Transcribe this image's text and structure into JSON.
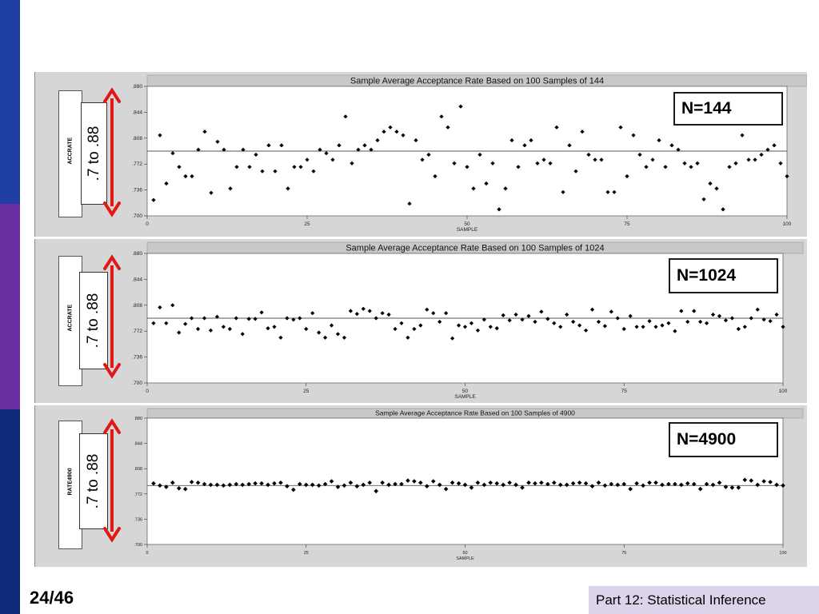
{
  "slide": {
    "page_number": "24/46",
    "footer": "Part 12: Statistical Inference",
    "colors": {
      "bar_top": "#1f3fa6",
      "bar_mid": "#6a2ea0",
      "bar_bottom": "#0d2a7a",
      "footer_tab": "#dcd4ea",
      "arrow": "#e01818"
    }
  },
  "annotations": [
    {
      "n_label": "N=144",
      "range_label": ".7 to .88",
      "legend_label": "ACCRATE"
    },
    {
      "n_label": "N=1024",
      "range_label": ".7 to .88",
      "legend_label": "ACCRATE"
    },
    {
      "n_label": "N=4900",
      "range_label": ".7 to .88",
      "legend_label": "RATE4900"
    }
  ],
  "chart_data": [
    {
      "type": "scatter",
      "title": "Sample Average Acceptance Rate Based on 100 Samples of 144",
      "xlabel": "SAMPLE",
      "xlim": [
        0,
        100
      ],
      "ylim": [
        0.7,
        0.88
      ],
      "xticks": [
        "0",
        "25",
        "50",
        "75",
        "100"
      ],
      "yticks": [
        ".880",
        ".844",
        ".808",
        ".772",
        ".736",
        ".700"
      ],
      "mean_line": 0.79,
      "x": [
        1,
        2,
        3,
        4,
        5,
        6,
        7,
        8,
        9,
        10,
        11,
        12,
        13,
        14,
        15,
        16,
        17,
        18,
        19,
        20,
        21,
        22,
        23,
        24,
        25,
        26,
        27,
        28,
        29,
        30,
        31,
        32,
        33,
        34,
        35,
        36,
        37,
        38,
        39,
        40,
        41,
        42,
        43,
        44,
        45,
        46,
        47,
        48,
        49,
        50,
        51,
        52,
        53,
        54,
        55,
        56,
        57,
        58,
        59,
        60,
        61,
        62,
        63,
        64,
        65,
        66,
        67,
        68,
        69,
        70,
        71,
        72,
        73,
        74,
        75,
        76,
        77,
        78,
        79,
        80,
        81,
        82,
        83,
        84,
        85,
        86,
        87,
        88,
        89,
        90,
        91,
        92,
        93,
        94,
        95,
        96,
        97,
        98,
        99,
        100
      ],
      "values": [
        0.722,
        0.812,
        0.745,
        0.787,
        0.768,
        0.755,
        0.755,
        0.792,
        0.817,
        0.732,
        0.803,
        0.792,
        0.738,
        0.768,
        0.792,
        0.768,
        0.785,
        0.762,
        0.798,
        0.762,
        0.798,
        0.738,
        0.768,
        0.768,
        0.778,
        0.762,
        0.792,
        0.787,
        0.778,
        0.798,
        0.838,
        0.773,
        0.792,
        0.798,
        0.792,
        0.805,
        0.817,
        0.823,
        0.817,
        0.812,
        0.717,
        0.805,
        0.778,
        0.785,
        0.755,
        0.838,
        0.823,
        0.773,
        0.852,
        0.768,
        0.738,
        0.785,
        0.745,
        0.773,
        0.709,
        0.738,
        0.805,
        0.768,
        0.798,
        0.805,
        0.773,
        0.778,
        0.773,
        0.823,
        0.733,
        0.798,
        0.762,
        0.817,
        0.785,
        0.778,
        0.778,
        0.733,
        0.733,
        0.823,
        0.755,
        0.812,
        0.785,
        0.768,
        0.778,
        0.805,
        0.768,
        0.798,
        0.792,
        0.773,
        0.768,
        0.773,
        0.723,
        0.745,
        0.738,
        0.709,
        0.768,
        0.773,
        0.812,
        0.778,
        0.778,
        0.785,
        0.792,
        0.798,
        0.773,
        0.755
      ]
    },
    {
      "type": "scatter",
      "title": "Sample Average Acceptance Rate Based on 100 Samples of 1024",
      "xlabel": "SAMPLE",
      "xlim": [
        0,
        100
      ],
      "ylim": [
        0.7,
        0.88
      ],
      "xticks": [
        "0",
        "25",
        "50",
        "75",
        "100"
      ],
      "yticks": [
        ".880",
        ".844",
        ".808",
        ".772",
        ".736",
        ".700"
      ],
      "mean_line": 0.79,
      "x": [
        1,
        2,
        3,
        4,
        5,
        6,
        7,
        8,
        9,
        10,
        11,
        12,
        13,
        14,
        15,
        16,
        17,
        18,
        19,
        20,
        21,
        22,
        23,
        24,
        25,
        26,
        27,
        28,
        29,
        30,
        31,
        32,
        33,
        34,
        35,
        36,
        37,
        38,
        39,
        40,
        41,
        42,
        43,
        44,
        45,
        46,
        47,
        48,
        49,
        50,
        51,
        52,
        53,
        54,
        55,
        56,
        57,
        58,
        59,
        60,
        61,
        62,
        63,
        64,
        65,
        66,
        67,
        68,
        69,
        70,
        71,
        72,
        73,
        74,
        75,
        76,
        77,
        78,
        79,
        80,
        81,
        82,
        83,
        84,
        85,
        86,
        87,
        88,
        89,
        90,
        91,
        92,
        93,
        94,
        95,
        96,
        97,
        98,
        99,
        100
      ],
      "values": [
        0.783,
        0.805,
        0.783,
        0.808,
        0.77,
        0.782,
        0.79,
        0.775,
        0.79,
        0.773,
        0.792,
        0.778,
        0.775,
        0.79,
        0.768,
        0.789,
        0.789,
        0.798,
        0.776,
        0.778,
        0.763,
        0.79,
        0.788,
        0.79,
        0.775,
        0.797,
        0.77,
        0.763,
        0.78,
        0.768,
        0.763,
        0.8,
        0.796,
        0.803,
        0.8,
        0.79,
        0.797,
        0.795,
        0.775,
        0.783,
        0.763,
        0.775,
        0.78,
        0.802,
        0.797,
        0.785,
        0.797,
        0.762,
        0.78,
        0.778,
        0.783,
        0.773,
        0.788,
        0.778,
        0.776,
        0.794,
        0.787,
        0.795,
        0.788,
        0.793,
        0.785,
        0.799,
        0.789,
        0.783,
        0.778,
        0.795,
        0.785,
        0.78,
        0.773,
        0.802,
        0.785,
        0.779,
        0.799,
        0.79,
        0.775,
        0.793,
        0.778,
        0.778,
        0.786,
        0.778,
        0.78,
        0.783,
        0.772,
        0.8,
        0.785,
        0.8,
        0.785,
        0.783,
        0.795,
        0.793,
        0.787,
        0.79,
        0.775,
        0.778,
        0.79,
        0.802,
        0.788,
        0.786,
        0.795,
        0.778
      ]
    },
    {
      "type": "scatter",
      "title": "Sample Average Acceptance Rate Based on 100 Samples of 4900",
      "xlabel": "SAMPLE",
      "xlim": [
        0,
        100
      ],
      "ylim": [
        0.7,
        0.88
      ],
      "xticks": [
        "0",
        "25",
        "50",
        "75",
        "100"
      ],
      "yticks": [
        ".880",
        ".844",
        ".808",
        ".772",
        ".736",
        ".700"
      ],
      "mean_line": 0.784,
      "x": [
        1,
        2,
        3,
        4,
        5,
        6,
        7,
        8,
        9,
        10,
        11,
        12,
        13,
        14,
        15,
        16,
        17,
        18,
        19,
        20,
        21,
        22,
        23,
        24,
        25,
        26,
        27,
        28,
        29,
        30,
        31,
        32,
        33,
        34,
        35,
        36,
        37,
        38,
        39,
        40,
        41,
        42,
        43,
        44,
        45,
        46,
        47,
        48,
        49,
        50,
        51,
        52,
        53,
        54,
        55,
        56,
        57,
        58,
        59,
        60,
        61,
        62,
        63,
        64,
        65,
        66,
        67,
        68,
        69,
        70,
        71,
        72,
        73,
        74,
        75,
        76,
        77,
        78,
        79,
        80,
        81,
        82,
        83,
        84,
        85,
        86,
        87,
        88,
        89,
        90,
        91,
        92,
        93,
        94,
        95,
        96,
        97,
        98,
        99,
        100
      ],
      "values": [
        0.787,
        0.784,
        0.782,
        0.788,
        0.78,
        0.779,
        0.789,
        0.788,
        0.786,
        0.785,
        0.785,
        0.784,
        0.785,
        0.786,
        0.785,
        0.786,
        0.787,
        0.787,
        0.785,
        0.787,
        0.788,
        0.783,
        0.778,
        0.786,
        0.785,
        0.785,
        0.784,
        0.786,
        0.79,
        0.782,
        0.784,
        0.788,
        0.783,
        0.785,
        0.788,
        0.776,
        0.788,
        0.785,
        0.786,
        0.786,
        0.791,
        0.79,
        0.788,
        0.783,
        0.79,
        0.785,
        0.779,
        0.788,
        0.787,
        0.785,
        0.781,
        0.788,
        0.785,
        0.788,
        0.787,
        0.785,
        0.788,
        0.785,
        0.781,
        0.788,
        0.787,
        0.788,
        0.786,
        0.788,
        0.785,
        0.785,
        0.787,
        0.788,
        0.787,
        0.783,
        0.788,
        0.784,
        0.786,
        0.785,
        0.786,
        0.779,
        0.787,
        0.784,
        0.788,
        0.788,
        0.785,
        0.786,
        0.786,
        0.785,
        0.787,
        0.786,
        0.779,
        0.786,
        0.785,
        0.788,
        0.782,
        0.781,
        0.781,
        0.792,
        0.791,
        0.785,
        0.79,
        0.789,
        0.785,
        0.784
      ]
    }
  ]
}
